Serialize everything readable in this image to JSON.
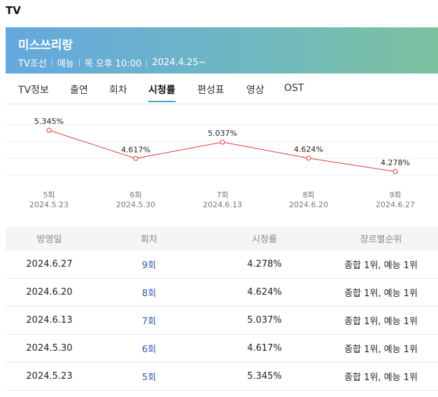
{
  "section_label": "TV",
  "program": {
    "title": "미스쓰리랑",
    "channel": "TV조선",
    "genre": "예능",
    "schedule": "목 오후 10:00",
    "start_date": "2024.4.25~",
    "banner_colors": [
      "#64a8de",
      "#7cc29f"
    ]
  },
  "tabs": [
    {
      "label": "TV정보",
      "active": false
    },
    {
      "label": "출연",
      "active": false
    },
    {
      "label": "회차",
      "active": false
    },
    {
      "label": "시청률",
      "active": true
    },
    {
      "label": "편성표",
      "active": false
    },
    {
      "label": "영상",
      "active": false
    },
    {
      "label": "OST",
      "active": false
    }
  ],
  "chart_data": {
    "type": "line",
    "title": "",
    "categories": [
      "5회",
      "6회",
      "7회",
      "8회",
      "9회"
    ],
    "dates": [
      "2024.5.23",
      "2024.5.30",
      "2024.6.13",
      "2024.6.20",
      "2024.6.27"
    ],
    "values": [
      5.345,
      4.617,
      5.037,
      4.624,
      4.278
    ],
    "labels": [
      "5.345%",
      "4.617%",
      "5.037%",
      "4.624%",
      "4.278%"
    ],
    "line_color": "#e53935",
    "grid": true
  },
  "table": {
    "headers": [
      "방영일",
      "회차",
      "시청률",
      "장르별순위"
    ],
    "rows": [
      {
        "date": "2024.6.27",
        "episode": "9회",
        "rating": "4.278%",
        "rank": "종합 1위, 예능 1위"
      },
      {
        "date": "2024.6.20",
        "episode": "8회",
        "rating": "4.624%",
        "rank": "종합 1위, 예능 1위"
      },
      {
        "date": "2024.6.13",
        "episode": "7회",
        "rating": "5.037%",
        "rank": "종합 1위, 예능 1위"
      },
      {
        "date": "2024.5.30",
        "episode": "6회",
        "rating": "4.617%",
        "rank": "종합 1위, 예능 1위"
      },
      {
        "date": "2024.5.23",
        "episode": "5회",
        "rating": "5.345%",
        "rank": "종합 1위, 예능 1위"
      }
    ]
  }
}
